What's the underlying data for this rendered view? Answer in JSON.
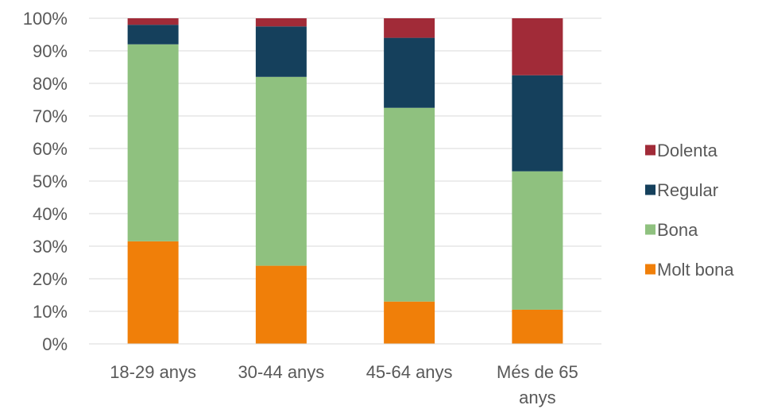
{
  "chart_data": {
    "type": "bar",
    "stacked": true,
    "percent": true,
    "categories": [
      [
        "18-29 anys"
      ],
      [
        "30-44 anys"
      ],
      [
        "45-64 anys"
      ],
      [
        "Més de 65",
        "anys"
      ]
    ],
    "series": [
      {
        "name": "Molt bona",
        "color": "#f07f09",
        "values": [
          31.5,
          24,
          13,
          10.5
        ]
      },
      {
        "name": "Bona",
        "color": "#8fc17f",
        "values": [
          60.5,
          58,
          59.5,
          42.5
        ]
      },
      {
        "name": "Regular",
        "color": "#15405c",
        "values": [
          6,
          15.5,
          21.5,
          29.5
        ]
      },
      {
        "name": "Dolenta",
        "color": "#a12b38",
        "values": [
          2,
          2.5,
          6,
          17.5
        ]
      }
    ],
    "y_ticks": [
      "0%",
      "10%",
      "20%",
      "30%",
      "40%",
      "50%",
      "60%",
      "70%",
      "80%",
      "90%",
      "100%"
    ],
    "ylim": [
      0,
      100
    ],
    "grid": true,
    "legend_position": "right",
    "legend_order": [
      "Dolenta",
      "Regular",
      "Bona",
      "Molt bona"
    ]
  }
}
